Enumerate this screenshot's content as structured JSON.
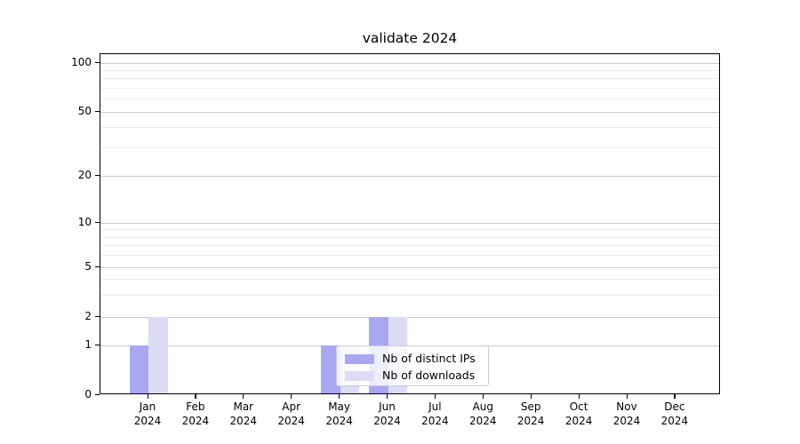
{
  "chart_data": {
    "type": "bar",
    "title": "validate 2024",
    "categories": [
      "Jan",
      "Feb",
      "Mar",
      "Apr",
      "May",
      "Jun",
      "Jul",
      "Aug",
      "Sep",
      "Oct",
      "Nov",
      "Dec"
    ],
    "year": "2024",
    "series": [
      {
        "name": "Nb of distinct IPs",
        "color": "#a8a8f2",
        "values": [
          1,
          0,
          0,
          0,
          1,
          2,
          0,
          0,
          0,
          0,
          0,
          0
        ]
      },
      {
        "name": "Nb of downloads",
        "color": "#dcdcf8",
        "values": [
          2,
          0,
          0,
          0,
          1,
          2,
          0,
          0,
          0,
          0,
          0,
          0
        ]
      }
    ],
    "yticks": [
      "100",
      "50",
      "20",
      "10",
      "5",
      "2",
      "1",
      "0"
    ],
    "ytick_values": [
      100,
      50,
      20,
      10,
      5,
      2,
      1,
      0
    ],
    "minor_gridline_values": [
      90,
      80,
      70,
      60,
      40,
      30,
      9,
      8,
      7,
      6,
      4,
      3
    ],
    "scale": "symlog",
    "ylim": [
      0,
      110
    ],
    "grid": true,
    "legend_position": "lower center",
    "background_color": "#ffffff",
    "axis_color": "#000000"
  }
}
